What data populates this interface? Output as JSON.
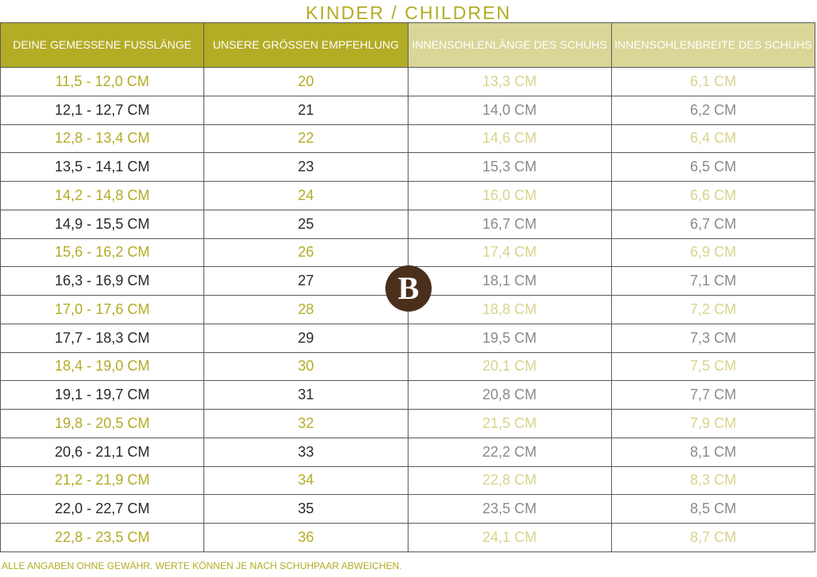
{
  "title": "KINDER / CHILDREN",
  "table": {
    "headers": [
      "DEINE GEMESSENE FUSSLÄNGE",
      "UNSERE GRÖSSEN EMPFEHLUNG",
      "INNENSOHLENLÄNGE DES SCHUHS",
      "INNENSOHLENBREITE DES SCHUHS"
    ],
    "rows": [
      [
        "11,5 - 12,0 CM",
        "20",
        "13,3 CM",
        "6,1 CM"
      ],
      [
        "12,1 - 12,7 CM",
        "21",
        "14,0 CM",
        "6,2 CM"
      ],
      [
        "12,8 - 13,4 CM",
        "22",
        "14,6 CM",
        "6,4 CM"
      ],
      [
        "13,5 - 14,1 CM",
        "23",
        "15,3 CM",
        "6,5 CM"
      ],
      [
        "14,2 - 14,8 CM",
        "24",
        "16,0 CM",
        "6,6 CM"
      ],
      [
        "14,9 - 15,5 CM",
        "25",
        "16,7 CM",
        "6,7 CM"
      ],
      [
        "15,6 - 16,2 CM",
        "26",
        "17,4 CM",
        "6,9 CM"
      ],
      [
        "16,3 - 16,9 CM",
        "27",
        "18,1 CM",
        "7,1 CM"
      ],
      [
        "17,0 - 17,6 CM",
        "28",
        "18,8 CM",
        "7,2 CM"
      ],
      [
        "17,7 - 18,3 CM",
        "29",
        "19,5 CM",
        "7,3 CM"
      ],
      [
        "18,4 - 19,0 CM",
        "30",
        "20,1 CM",
        "7,5 CM"
      ],
      [
        "19,1 - 19,7 CM",
        "31",
        "20,8 CM",
        "7,7 CM"
      ],
      [
        "19,8 - 20,5 CM",
        "32",
        "21,5 CM",
        "7,9 CM"
      ],
      [
        "20,6 - 21,1 CM",
        "33",
        "22,2 CM",
        "8,1 CM"
      ],
      [
        "21,2 - 21,9 CM",
        "34",
        "22,8 CM",
        "8,3 CM"
      ],
      [
        "22,0 - 22,7 CM",
        "35",
        "23,5 CM",
        "8,5 CM"
      ],
      [
        "22,8 - 23,5 CM",
        "36",
        "24,1 CM",
        "8,7 CM"
      ]
    ]
  },
  "logo": "B",
  "footnote": "ALLE ANGABEN OHNE GEWÄHR. WERTE KÖNNEN JE NACH SCHUHPAAR ABWEICHEN."
}
